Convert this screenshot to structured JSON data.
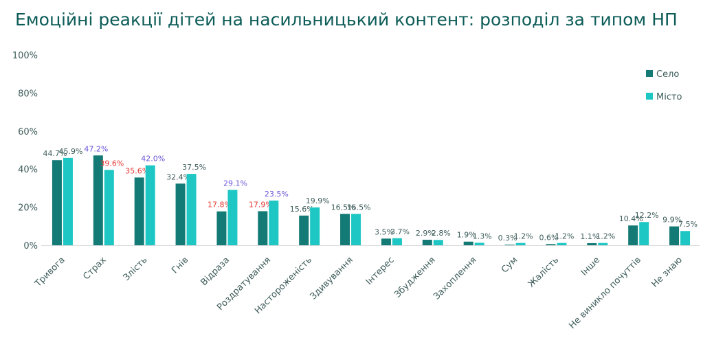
{
  "chart_data": {
    "type": "bar",
    "title": "Емоційні реакції дітей на насильницький контент: розподіл за типом НП",
    "categories": [
      "Тривога",
      "Страх",
      "Злість",
      "Гнів",
      "Відраза",
      "Роздратування",
      "Настороженість",
      "Здивування",
      "Інтерес",
      "Збудження",
      "Захоплення",
      "Сум",
      "Жалість",
      "Інше",
      "Не виникло почуттів",
      "Не знаю"
    ],
    "series": [
      {
        "name": "Село",
        "color": "#137a75",
        "values": [
          44.7,
          47.2,
          35.6,
          32.4,
          17.8,
          17.9,
          15.6,
          16.5,
          3.5,
          2.9,
          1.9,
          0.3,
          0.6,
          1.1,
          10.4,
          9.9
        ],
        "labels": [
          "44.7%",
          "47.2%",
          "35.6%",
          "32.4%",
          "17.8%",
          "17.9%",
          "15.6%",
          "16.5%",
          "3.5%",
          "2.9%",
          "1.9%",
          "0.3%",
          "0.6%",
          "1.1%",
          "10.4%",
          "9.9%"
        ],
        "label_colors": [
          "#3d5c5a",
          "#6a55d8",
          "#e53935",
          "#3d5c5a",
          "#e53935",
          "#e53935",
          "#3d5c5a",
          "#3d5c5a",
          "#3d5c5a",
          "#3d5c5a",
          "#3d5c5a",
          "#3d5c5a",
          "#3d5c5a",
          "#3d5c5a",
          "#3d5c5a",
          "#3d5c5a"
        ]
      },
      {
        "name": "Місто",
        "color": "#1ec7c3",
        "values": [
          45.9,
          39.6,
          42.0,
          37.5,
          29.1,
          23.5,
          19.9,
          16.5,
          3.7,
          2.8,
          1.3,
          1.2,
          1.2,
          1.2,
          12.2,
          7.5
        ],
        "labels": [
          "45.9%",
          "39.6%",
          "42.0%",
          "37.5%",
          "29.1%",
          "23.5%",
          "19.9%",
          "16.5%",
          "3.7%",
          "2.8%",
          "1.3%",
          "1.2%",
          "1.2%",
          "1.2%",
          "12.2%",
          "7.5%"
        ],
        "label_colors": [
          "#3d5c5a",
          "#e53935",
          "#6a55d8",
          "#3d5c5a",
          "#6a55d8",
          "#6a55d8",
          "#3d5c5a",
          "#3d5c5a",
          "#3d5c5a",
          "#3d5c5a",
          "#3d5c5a",
          "#3d5c5a",
          "#3d5c5a",
          "#3d5c5a",
          "#3d5c5a",
          "#3d5c5a"
        ]
      }
    ],
    "ylim": [
      0,
      100
    ],
    "yticks": [
      "0%",
      "20%",
      "40%",
      "60%",
      "80%",
      "100%"
    ],
    "grid": false,
    "legend_position": "top-right"
  }
}
